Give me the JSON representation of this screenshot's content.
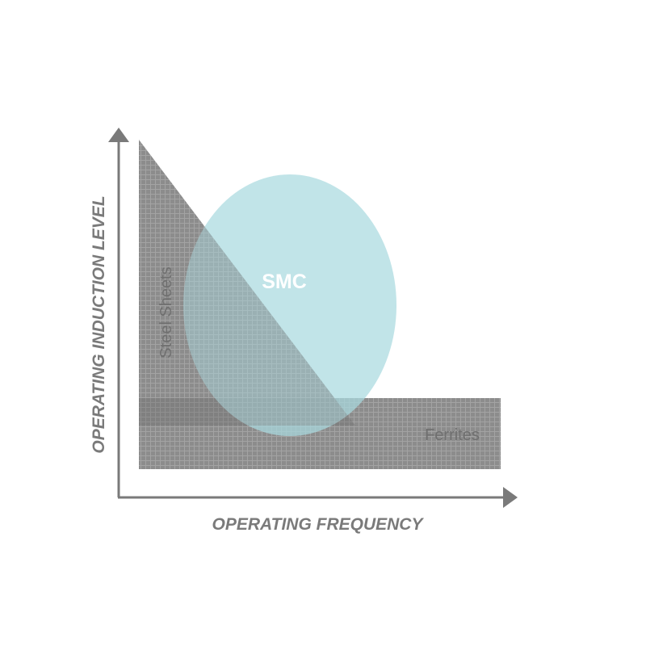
{
  "diagram": {
    "y_axis_label": "OPERATING INDUCTION LEVEL",
    "x_axis_label": "OPERATING FREQUENCY",
    "regions": {
      "steel_sheets": "Steel Sheets",
      "ferrites": "Ferrites",
      "smc": "SMC"
    },
    "colors": {
      "axis": "#7a7a7a",
      "hatch_fill": "#8c8c8c",
      "hatch_line": "#a3a3a3",
      "smc_fill": "#a9dadf",
      "overlap_band": "#6b6b6b",
      "region_text": "#6f6f6f"
    }
  }
}
